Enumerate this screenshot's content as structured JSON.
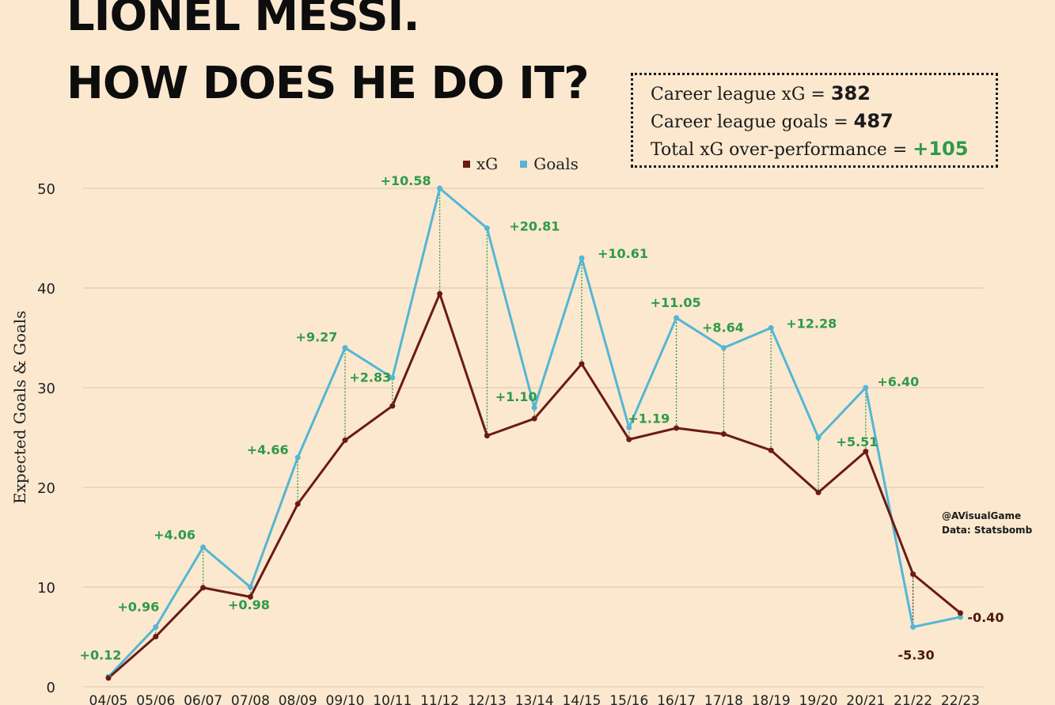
{
  "title": {
    "line1": "LIONEL MESSI.",
    "line2": "HOW DOES HE DO IT?"
  },
  "stats": {
    "xg_label": "Career league xG = ",
    "xg_value": "382",
    "goals_label": "Career league goals = ",
    "goals_value": "487",
    "over_label": "Total xG over-performance = ",
    "over_value": "+105"
  },
  "credit": {
    "line1": "@AVisualGame",
    "line2": "Data: Statsbomb"
  },
  "colors": {
    "xg": "#6b1a14",
    "goals": "#54b6d4",
    "positive": "#2e9a4a",
    "negative": "#4a1a12",
    "background": "#fbe8cf"
  },
  "chart_data": {
    "type": "line",
    "title": "LIONEL MESSI. HOW DOES HE DO IT?",
    "xlabel": "",
    "ylabel": "Expected Goals & Goals",
    "ylim": [
      0,
      50
    ],
    "yticks": [
      0,
      10,
      20,
      30,
      40,
      50
    ],
    "grid": true,
    "legend_position": "top-center",
    "categories": [
      "04/05",
      "05/06",
      "06/07",
      "07/08",
      "08/09",
      "09/10",
      "10/11",
      "11/12",
      "12/13",
      "13/14",
      "14/15",
      "15/16",
      "16/17",
      "17/18",
      "18/19",
      "19/20",
      "20/21",
      "21/22",
      "22/23"
    ],
    "series": [
      {
        "name": "xG",
        "values": [
          0.88,
          5.04,
          9.94,
          9.02,
          18.34,
          24.73,
          28.17,
          39.42,
          25.19,
          26.9,
          32.39,
          24.81,
          25.95,
          25.36,
          23.72,
          19.49,
          23.6,
          11.3,
          7.4
        ]
      },
      {
        "name": "Goals",
        "values": [
          1,
          6,
          14,
          10,
          23,
          34,
          31,
          50,
          46,
          28,
          43,
          26,
          37,
          34,
          36,
          25,
          30,
          6,
          7
        ]
      }
    ],
    "annotations": [
      "+0.12",
      "+0.96",
      "+4.06",
      "+0.98",
      "+4.66",
      "+9.27",
      "+2.83",
      "+10.58",
      "+20.81",
      "+1.10",
      "+10.61",
      "+1.19",
      "+11.05",
      "+8.64",
      "+12.28",
      "+5.51",
      "+6.40",
      "-5.30",
      "-0.40"
    ]
  }
}
